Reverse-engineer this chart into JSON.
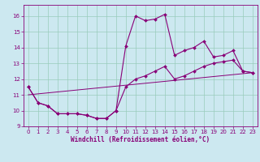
{
  "xlabel": "Windchill (Refroidissement éolien,°C)",
  "background_color": "#cce8f0",
  "grid_color": "#99ccbb",
  "line_color": "#880077",
  "xlim": [
    -0.5,
    23.5
  ],
  "ylim": [
    9.0,
    16.7
  ],
  "yticks": [
    9,
    10,
    11,
    12,
    13,
    14,
    15,
    16
  ],
  "xticks": [
    0,
    1,
    2,
    3,
    4,
    5,
    6,
    7,
    8,
    9,
    10,
    11,
    12,
    13,
    14,
    15,
    16,
    17,
    18,
    19,
    20,
    21,
    22,
    23
  ],
  "hours": [
    0,
    1,
    2,
    3,
    4,
    5,
    6,
    7,
    8,
    9,
    10,
    11,
    12,
    13,
    14,
    15,
    16,
    17,
    18,
    19,
    20,
    21,
    22,
    23
  ],
  "temp": [
    11.5,
    10.5,
    10.3,
    9.8,
    9.8,
    9.8,
    9.7,
    9.5,
    9.5,
    10.0,
    14.1,
    16.0,
    15.7,
    15.8,
    16.1,
    13.5,
    13.8,
    14.0,
    14.4,
    13.4,
    13.5,
    13.8,
    12.5,
    12.4
  ],
  "windchill": [
    11.5,
    10.5,
    10.3,
    9.8,
    9.8,
    9.8,
    9.7,
    9.5,
    9.5,
    10.0,
    11.5,
    12.0,
    12.2,
    12.5,
    12.8,
    12.0,
    12.2,
    12.5,
    12.8,
    13.0,
    13.1,
    13.2,
    12.5,
    12.4
  ],
  "line3_x": [
    0,
    23
  ],
  "line3_y": [
    11.0,
    12.4
  ]
}
